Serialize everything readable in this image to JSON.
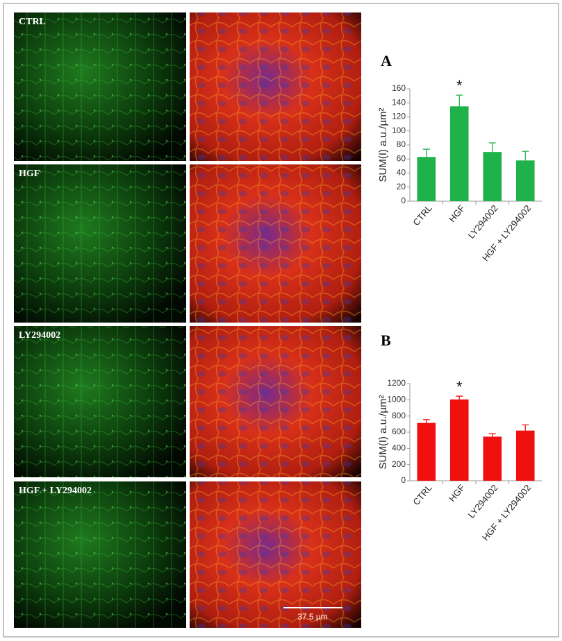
{
  "panels": [
    "CTRL",
    "HGF",
    "LY294002",
    "HGF + LY294002"
  ],
  "scale_bar": "37.5 µm",
  "chart_data": [
    {
      "type": "bar",
      "label": "A",
      "ylabel": "SUM(I) a.u./µm²",
      "annotation": "*",
      "categories": [
        "CTRL",
        "HGF",
        "LY294002",
        "HGF + LY294002"
      ],
      "values": [
        63,
        135,
        70,
        58
      ],
      "errors": [
        11,
        16,
        13,
        13
      ],
      "color": "#1fb24a",
      "ylim": [
        0,
        160
      ],
      "yticks": [
        0,
        20,
        40,
        60,
        80,
        100,
        120,
        140,
        160
      ]
    },
    {
      "type": "bar",
      "label": "B",
      "ylabel": "SUM(I) a.u./µm²",
      "annotation": "*",
      "categories": [
        "CTRL",
        "HGF",
        "LY294002",
        "HGF + LY294002"
      ],
      "values": [
        715,
        1005,
        545,
        620
      ],
      "errors": [
        40,
        40,
        35,
        70
      ],
      "color": "#f01010",
      "ylim": [
        0,
        1200
      ],
      "yticks": [
        0,
        200,
        400,
        600,
        800,
        1000,
        1200
      ]
    }
  ]
}
